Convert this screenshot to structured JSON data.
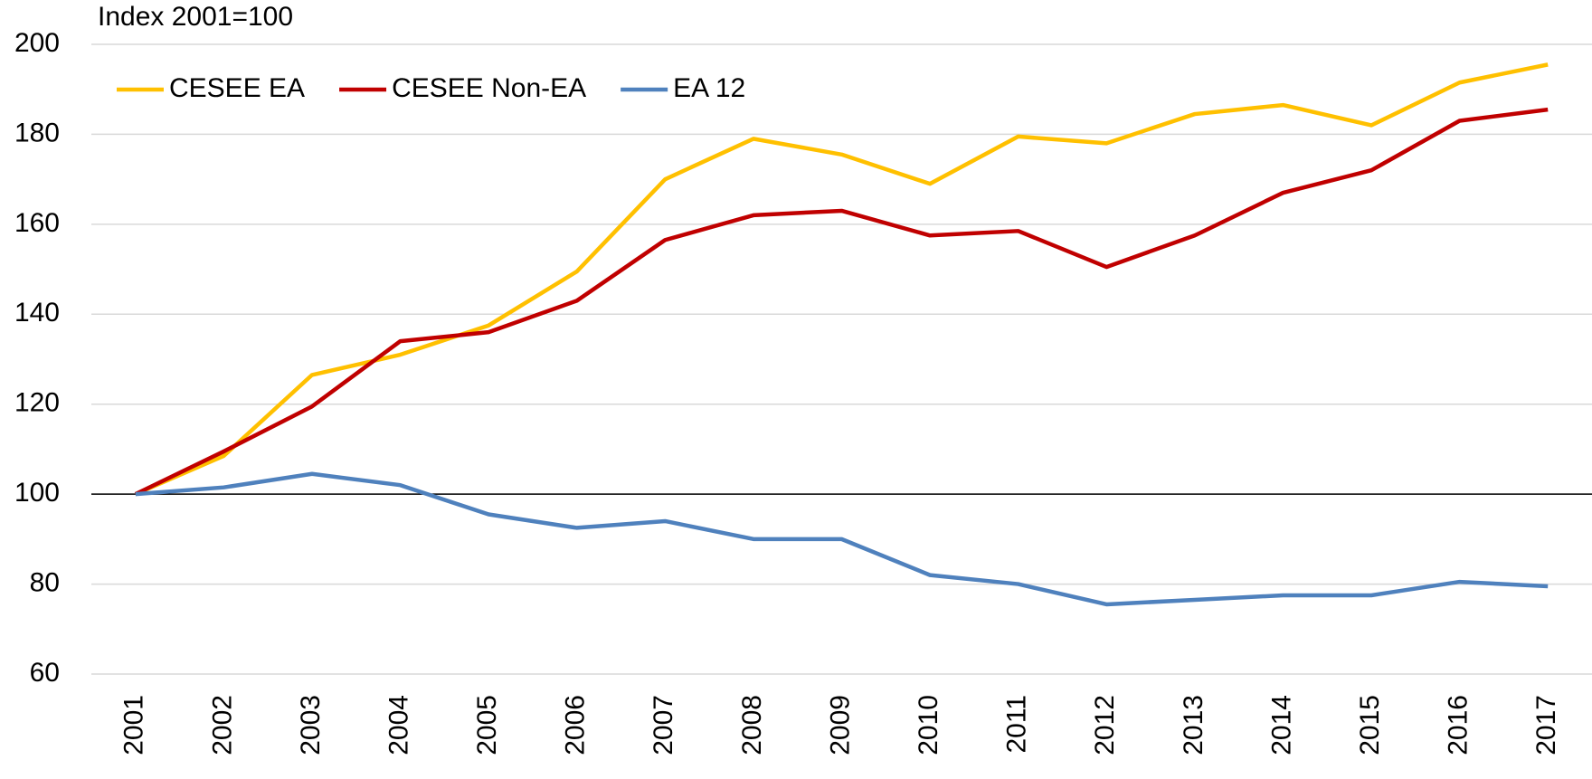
{
  "chart_data": {
    "type": "line",
    "y_label": "Index 2001=100",
    "categories": [
      "2001",
      "2002",
      "2003",
      "2004",
      "2005",
      "2006",
      "2007",
      "2008",
      "2009",
      "2010",
      "2011",
      "2012",
      "2013",
      "2014",
      "2015",
      "2016",
      "2017"
    ],
    "series": [
      {
        "name": "CESEE EA",
        "color": "#FFC000",
        "values": [
          100,
          108.5,
          126.5,
          131,
          137.5,
          149.5,
          170,
          179,
          175.5,
          169,
          179.5,
          178,
          184.5,
          186.5,
          182,
          191.5,
          195.5
        ]
      },
      {
        "name": "CESEE Non-EA",
        "color": "#C00000",
        "values": [
          100,
          109.5,
          119.5,
          134,
          136,
          143,
          156.5,
          162,
          163,
          157.5,
          158.5,
          150.5,
          157.5,
          167,
          172,
          183,
          185.5
        ]
      },
      {
        "name": "EA 12",
        "color": "#4F81BD",
        "values": [
          100,
          101.5,
          104.5,
          102,
          95.5,
          92.5,
          94,
          90,
          90,
          82,
          80,
          75.5,
          76.5,
          77.5,
          77.5,
          80.5,
          79.5
        ]
      }
    ],
    "ylim": [
      60,
      200
    ],
    "yticks": [
      60,
      80,
      100,
      120,
      140,
      160,
      180,
      200
    ],
    "reference_line": 100,
    "grid": true,
    "legend": "top-left"
  }
}
